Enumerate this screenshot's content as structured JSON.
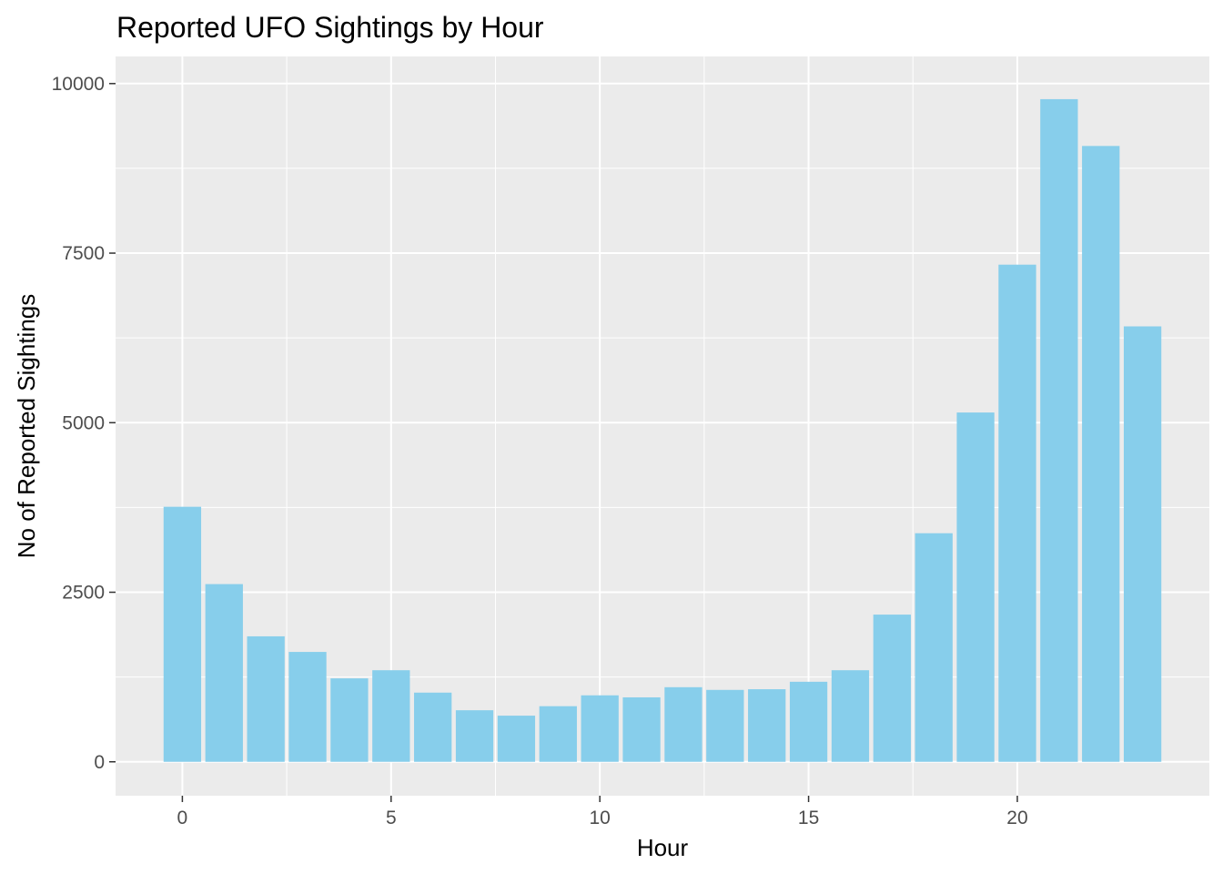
{
  "chart_data": {
    "type": "bar",
    "title": "Reported UFO Sightings by Hour",
    "xlabel": "Hour",
    "ylabel": "No of Reported Sightings",
    "x": [
      0,
      1,
      2,
      3,
      4,
      5,
      6,
      7,
      8,
      9,
      10,
      11,
      12,
      13,
      14,
      15,
      16,
      17,
      18,
      19,
      20,
      21,
      22,
      23
    ],
    "values": [
      3760,
      2620,
      1850,
      1620,
      1230,
      1350,
      1020,
      760,
      680,
      820,
      980,
      950,
      1100,
      1060,
      1070,
      1180,
      1350,
      2170,
      3370,
      5150,
      7330,
      9770,
      9080,
      6420
    ],
    "xlim": [
      -0.5,
      23.5
    ],
    "ylim": [
      0,
      10000
    ],
    "x_ticks": [
      0,
      5,
      10,
      15,
      20
    ],
    "x_tick_labels": [
      "0",
      "5",
      "10",
      "15",
      "20"
    ],
    "y_ticks": [
      0,
      2500,
      5000,
      7500,
      10000
    ],
    "y_tick_labels": [
      "0",
      "2500",
      "5000",
      "7500",
      "10000"
    ],
    "bar_color": "#87CEEB",
    "panel_color": "#EBEBEB",
    "grid_color": "#FFFFFF",
    "grid": true,
    "legend": "none"
  }
}
